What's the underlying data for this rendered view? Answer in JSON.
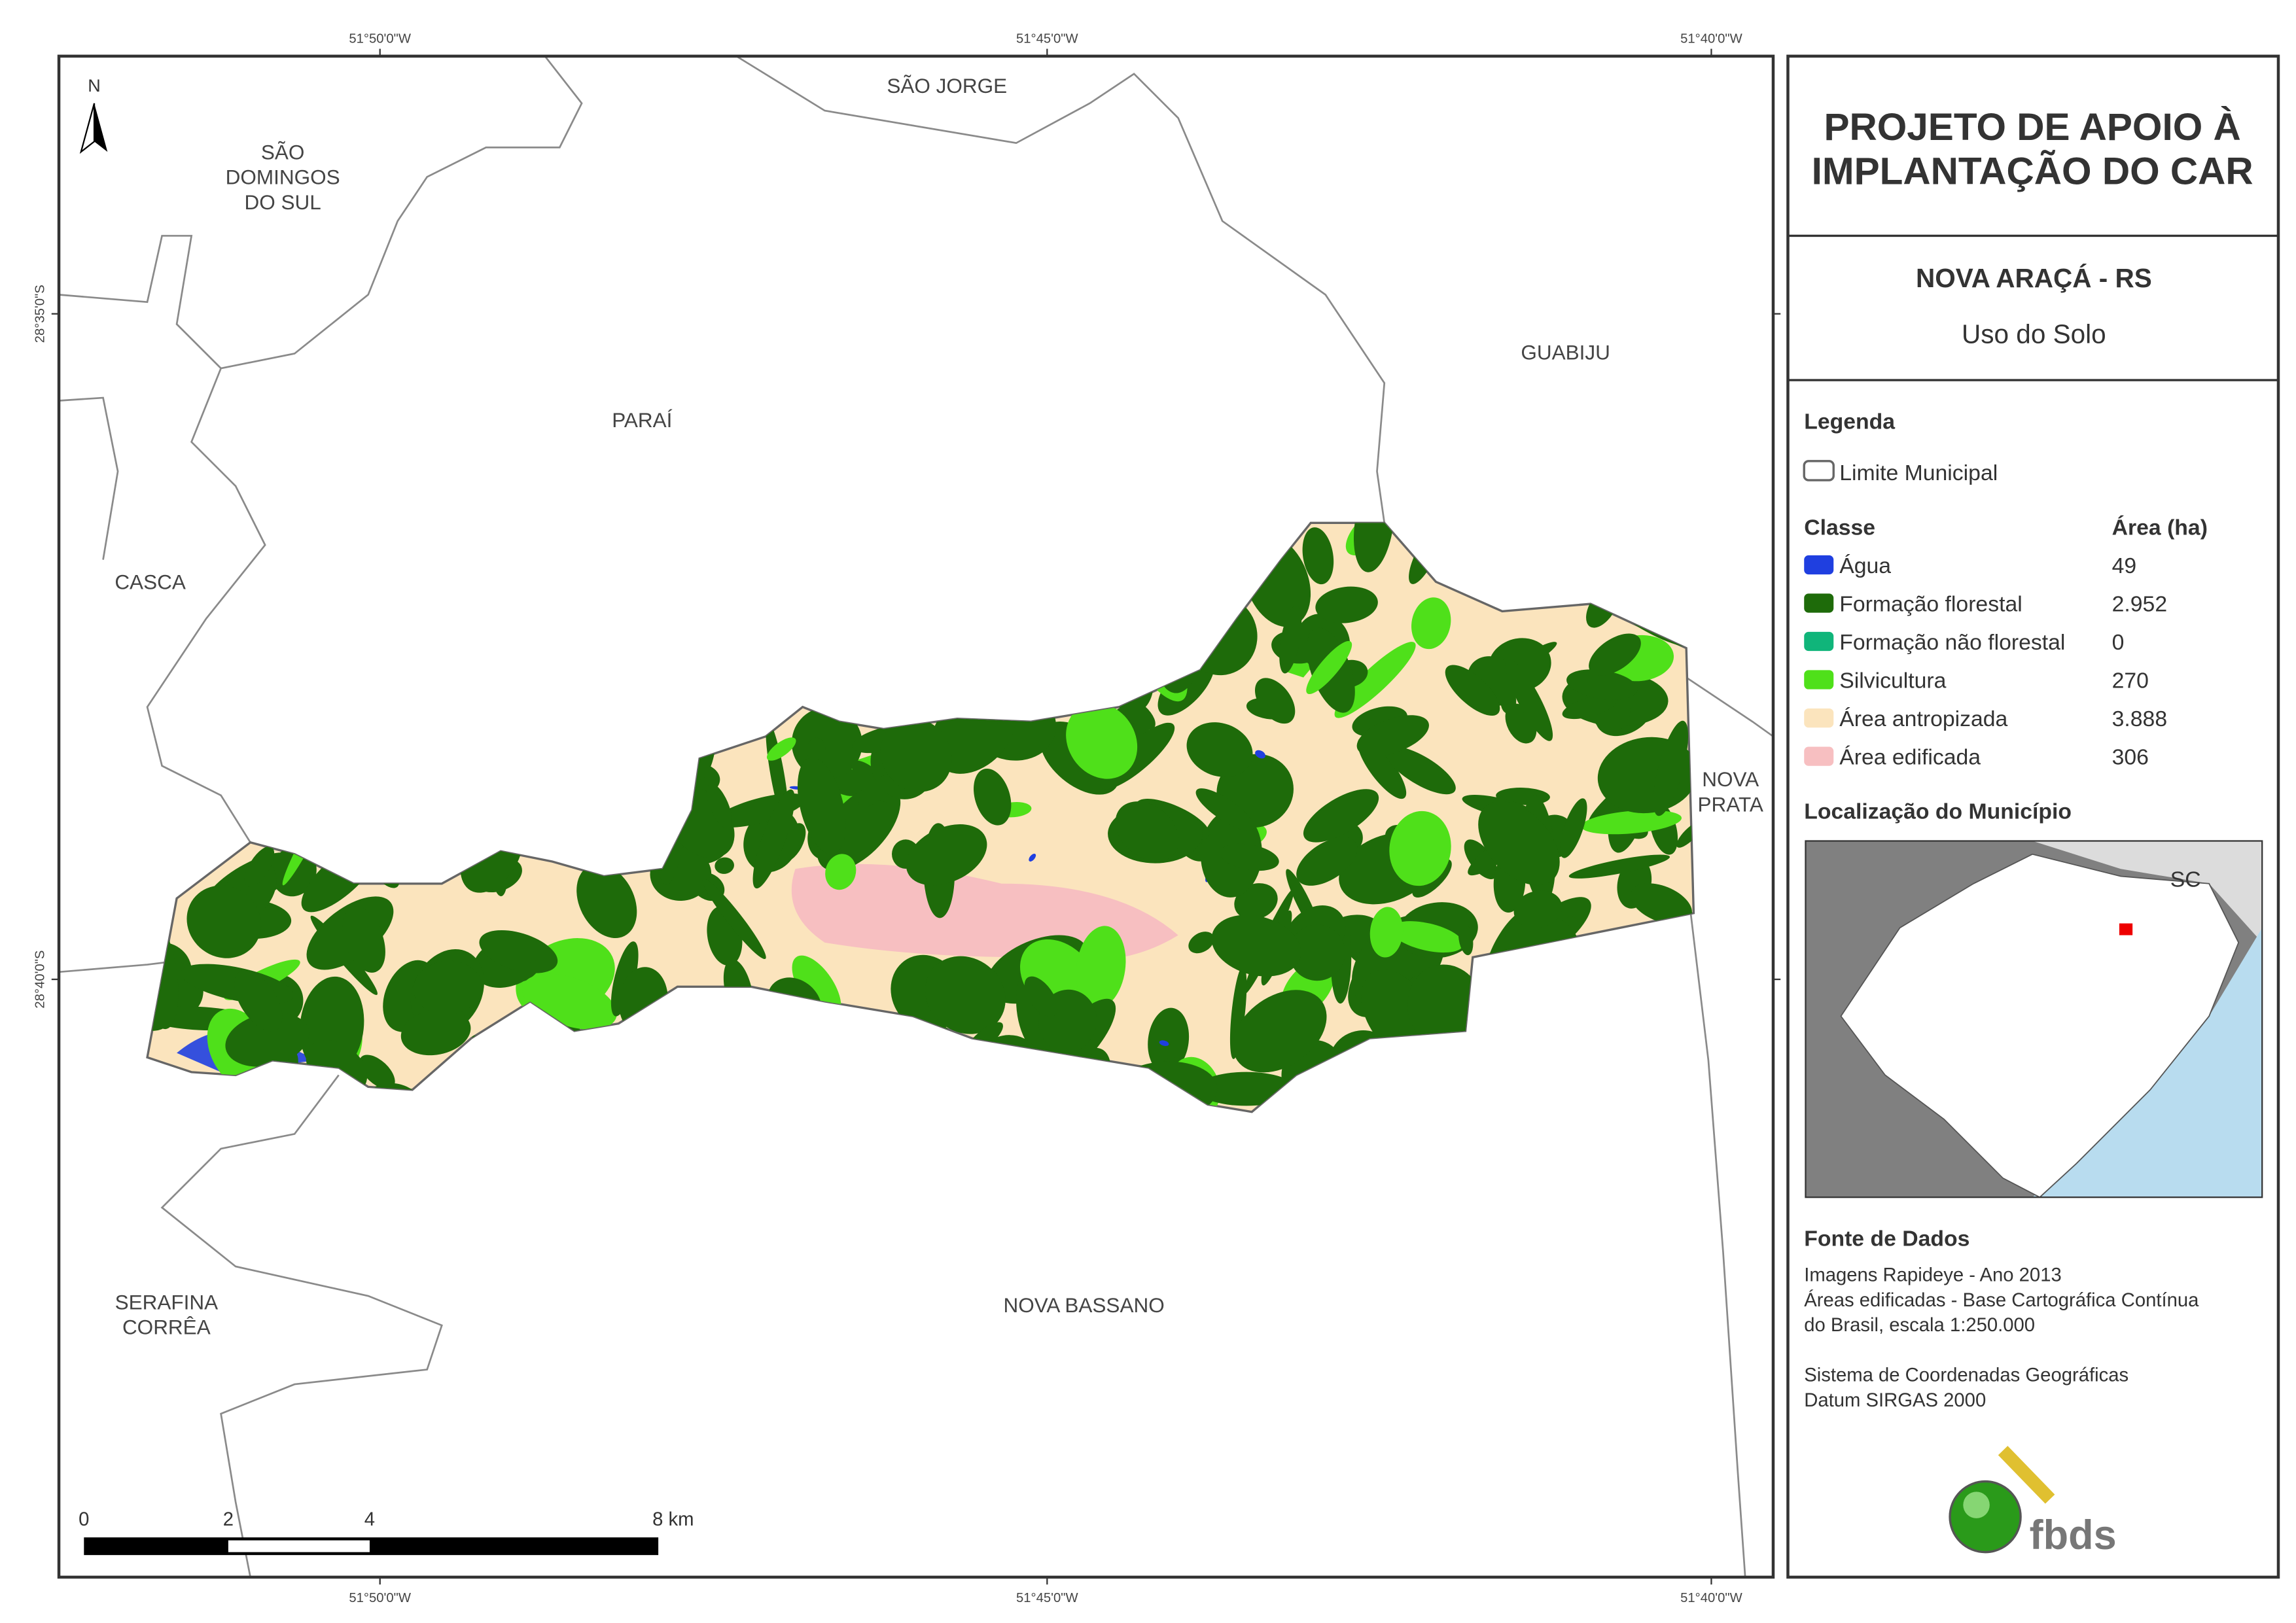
{
  "map": {
    "north": "N",
    "coordinates": {
      "top": [
        "51°50'0\"W",
        "51°45'0\"W",
        "51°40'0\"W"
      ],
      "bottom": [
        "51°50'0\"W",
        "51°45'0\"W",
        "51°40'0\"W"
      ],
      "left": [
        "28°35'0\"S",
        "28°40'0\"S"
      ]
    },
    "places": {
      "sao_jorge": [
        "SÃO JORGE"
      ],
      "sao_domingos": [
        "SÃO",
        "DOMINGOS",
        "DO SUL"
      ],
      "parai": [
        "PARAÍ"
      ],
      "guabiju": [
        "GUABIJU"
      ],
      "casca": [
        "CASCA"
      ],
      "nova_prata": [
        "NOVA",
        "PRATA"
      ],
      "serafina": [
        "SERAFINA",
        "CORRÊA"
      ],
      "nova_bassano": [
        "NOVA BASSANO"
      ]
    },
    "scale_bar": [
      "0",
      "2",
      "4",
      "8 km"
    ]
  },
  "panel": {
    "title": [
      "PROJETO DE APOIO À",
      "IMPLANTAÇÃO DO CAR"
    ],
    "municipality": "NOVA ARAÇÁ - RS",
    "subtitle": "Uso do Solo",
    "legend": {
      "heading": "Legenda",
      "boundary": "Limite Municipal",
      "class_header": "Classe",
      "area_header": "Área (ha)",
      "classes": [
        {
          "name": "Água",
          "area": "49",
          "color": "#1f3fe0"
        },
        {
          "name": "Formação florestal",
          "area": "2.952",
          "color": "#1e6b0a"
        },
        {
          "name": "Formação não florestal",
          "area": "0",
          "color": "#10b57a"
        },
        {
          "name": "Silvicultura",
          "area": "270",
          "color": "#4fe01a"
        },
        {
          "name": "Área antropizada",
          "area": "3.888",
          "color": "#fbe4bd"
        },
        {
          "name": "Área edificada",
          "area": "306",
          "color": "#f7bfc1"
        }
      ]
    },
    "location": {
      "heading": "Localização do Município",
      "label": "SC"
    },
    "sources": {
      "heading": "Fonte de Dados",
      "lines": [
        "Imagens Rapideye - Ano 2013",
        "Áreas edificadas - Base Cartográfica Contínua",
        "do Brasil, escala 1:250.000",
        "",
        "Sistema de Coordenadas Geográficas",
        "Datum SIRGAS 2000"
      ]
    },
    "logo": "fbds"
  }
}
